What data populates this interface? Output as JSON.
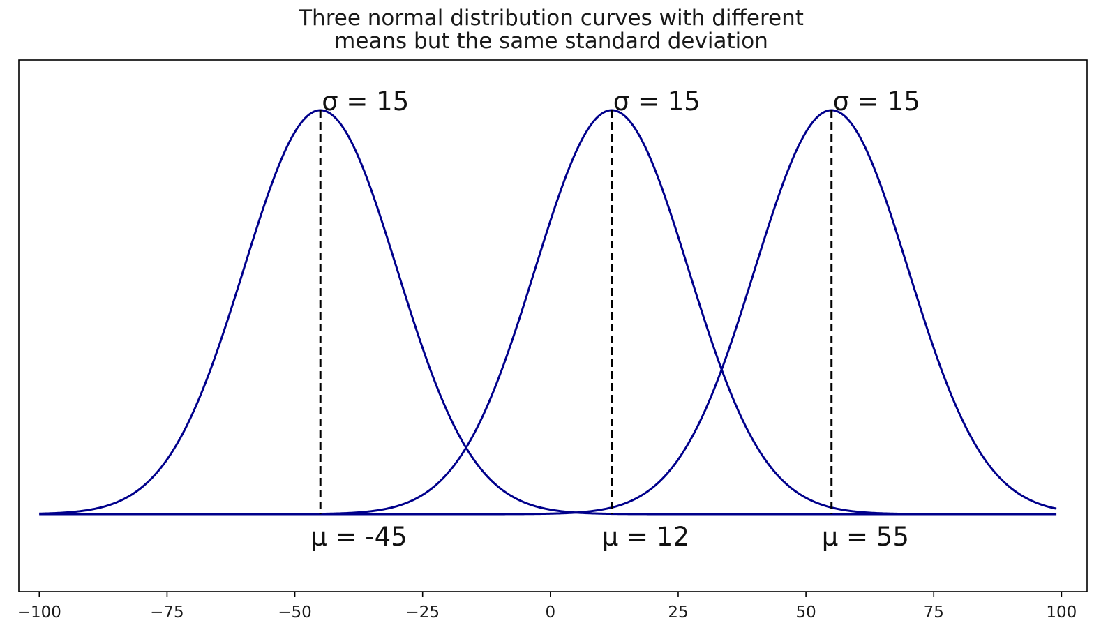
{
  "chart_data": {
    "type": "line",
    "title_lines": [
      "Three normal distribution curves with different",
      "means but the same standard deviation"
    ],
    "xlabel": "",
    "ylabel": "",
    "xlim": [
      -104,
      105
    ],
    "curve_x_range": [
      -100,
      99
    ],
    "xticks": [
      -100,
      -75,
      -50,
      -25,
      0,
      25,
      50,
      75,
      100
    ],
    "xtick_labels": [
      "−100",
      "−75",
      "−50",
      "−25",
      "0",
      "25",
      "50",
      "75",
      "100"
    ],
    "yaxis_visible": false,
    "grid": false,
    "line_color": "#00008b",
    "series": [
      {
        "mean": -45,
        "sd": 15,
        "sigma_label": "σ = 15",
        "mu_label": "μ = -45"
      },
      {
        "mean": 12,
        "sd": 15,
        "sigma_label": "σ = 15",
        "mu_label": "μ = 12"
      },
      {
        "mean": 55,
        "sd": 15,
        "sigma_label": "σ = 15",
        "mu_label": "μ = 55"
      }
    ]
  }
}
